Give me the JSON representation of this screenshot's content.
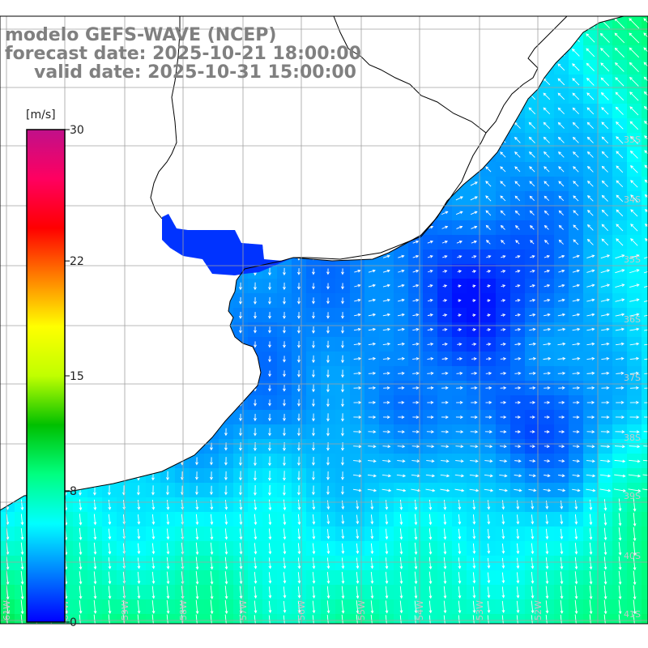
{
  "title": {
    "line1": "modelo GEFS-WAVE (NCEP)",
    "line2": "forecast date: 2025-10-21 18:00:00",
    "line3": "valid date: 2025-10-31 15:00:00"
  },
  "colorbar": {
    "unit": "[m/s]",
    "ticks": [
      {
        "value": 0,
        "label": "0"
      },
      {
        "value": 8,
        "label": "8"
      },
      {
        "value": 15,
        "label": "15"
      },
      {
        "value": 22,
        "label": "22"
      },
      {
        "value": 30,
        "label": "30"
      }
    ],
    "range": [
      0,
      30
    ],
    "colors": [
      "#0000ff",
      "#0080ff",
      "#00ffff",
      "#00ff80",
      "#00c000",
      "#c0ff00",
      "#ffff00",
      "#ff8000",
      "#ff0000",
      "#ff0060",
      "#c0108a"
    ]
  },
  "map": {
    "lat_range": [
      -42,
      -31
    ],
    "lon_range": [
      -62,
      -51
    ],
    "lat_labels": [
      "33S",
      "34S",
      "35S",
      "36S",
      "37S",
      "38S",
      "39S",
      "40S",
      "41S"
    ],
    "lon_labels": [
      "61W",
      "60W",
      "59W",
      "58W",
      "57W",
      "56W",
      "55W",
      "54W",
      "53W",
      "52W"
    ],
    "land_color": "#ffffff",
    "grid_color": "#a0a0a0",
    "arrow_color": "#ffffff",
    "field": "wind speed and direction over the ocean"
  }
}
